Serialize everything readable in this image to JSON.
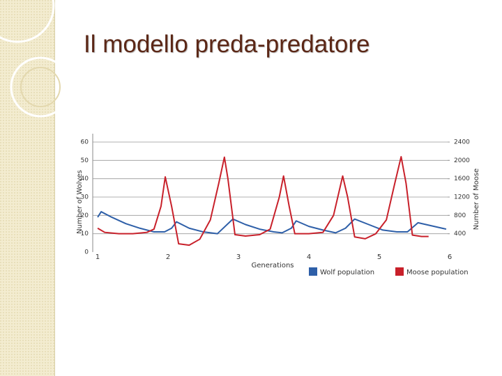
{
  "title": "Il modello preda-predatore",
  "chart_data": {
    "type": "line",
    "x_label": "Generations",
    "y_label": "Number of Wolves",
    "y2_label": "Number of Moose",
    "xlim": [
      0.93,
      6
    ],
    "xticks": [
      1,
      2,
      3,
      4,
      5,
      6
    ],
    "ylim": [
      0,
      60
    ],
    "yticks": [
      0,
      10,
      20,
      30,
      40,
      50,
      60
    ],
    "y2lim": [
      0,
      2400
    ],
    "y2ticks": [
      400,
      800,
      1200,
      1600,
      2000,
      2400
    ],
    "grid": true,
    "series": [
      {
        "name": "Wolf population",
        "color": "#2e5fa8",
        "x": [
          1,
          1.05,
          1.2,
          1.4,
          1.6,
          1.8,
          1.95,
          2.05,
          2.12,
          2.3,
          2.5,
          2.7,
          2.92,
          3.1,
          3.3,
          3.5,
          3.62,
          3.75,
          3.82,
          4.0,
          4.2,
          4.38,
          4.52,
          4.65,
          4.85,
          5.05,
          5.25,
          5.4,
          5.55,
          5.95
        ],
        "values": [
          19,
          22,
          19,
          15.5,
          13,
          11,
          11,
          13,
          16.5,
          13,
          11,
          10,
          18,
          15,
          12.5,
          11,
          10.5,
          13,
          17,
          14,
          12,
          10.5,
          13,
          18,
          15,
          12,
          11,
          11,
          16,
          12.5
        ]
      },
      {
        "name": "Moose population",
        "color": "#c8202a",
        "axis": "y2",
        "x": [
          1,
          1.1,
          1.3,
          1.5,
          1.7,
          1.8,
          1.9,
          1.96,
          2.05,
          2.15,
          2.3,
          2.45,
          2.6,
          2.72,
          2.8,
          2.85,
          2.95,
          3.1,
          3.3,
          3.45,
          3.58,
          3.64,
          3.72,
          3.8,
          4.0,
          4.2,
          4.35,
          4.48,
          4.55,
          4.65,
          4.8,
          4.95,
          5.1,
          5.22,
          5.31,
          5.38,
          5.47,
          5.6,
          5.7
        ],
        "values": [
          520,
          430,
          400,
          400,
          430,
          500,
          1000,
          1640,
          1000,
          180,
          150,
          280,
          700,
          1500,
          2070,
          1600,
          380,
          350,
          380,
          500,
          1200,
          1660,
          1000,
          400,
          400,
          430,
          800,
          1660,
          1200,
          330,
          290,
          400,
          700,
          1500,
          2080,
          1500,
          370,
          340,
          340
        ]
      }
    ]
  }
}
